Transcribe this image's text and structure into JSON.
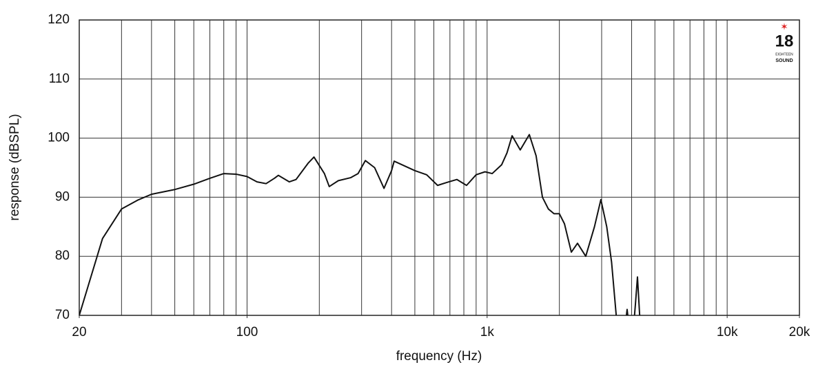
{
  "chart_data": {
    "type": "line",
    "x_label": "frequency (Hz)",
    "y_label": "response (dBSPL)",
    "log_x": true,
    "grid": true,
    "xlim": [
      20,
      20000
    ],
    "ylim": [
      70,
      120
    ],
    "xticks": [
      20,
      100,
      {
        "value": 1000,
        "label": "1k"
      },
      {
        "value": 10000,
        "label": "10k"
      },
      {
        "value": 20000,
        "label": "20k"
      }
    ],
    "xgrid": [
      30,
      40,
      50,
      60,
      70,
      80,
      90,
      100,
      200,
      300,
      400,
      500,
      600,
      700,
      800,
      900,
      1000,
      2000,
      3000,
      4000,
      5000,
      6000,
      7000,
      8000,
      9000,
      10000
    ],
    "yticks": [
      70,
      80,
      90,
      100,
      110,
      120
    ],
    "logo": {
      "number": "18",
      "line1": "EIGHTEEN",
      "line2": "SOUND"
    },
    "series": [
      {
        "color": "#111111",
        "x": [
          20,
          25,
          30,
          35,
          40,
          50,
          60,
          70,
          80,
          90,
          100,
          110,
          120,
          130,
          135,
          150,
          160,
          180,
          190,
          210,
          220,
          240,
          270,
          290,
          311,
          340,
          372,
          400,
          410,
          500,
          560,
          622,
          680,
          748,
          821,
          900,
          980,
          1050,
          1150,
          1210,
          1271,
          1374,
          1499,
          1600,
          1700,
          1800,
          1900,
          2000,
          2100,
          2243,
          2380,
          2576,
          2800,
          2978,
          3150,
          3300,
          3450,
          3600,
          3780,
          3830,
          3880,
          4000,
          4150,
          4230,
          4320,
          4450
        ],
        "values": [
          70,
          83,
          88,
          89.5,
          90.5,
          91.3,
          92.2,
          93.2,
          94,
          93.9,
          93.5,
          92.6,
          92.3,
          93.2,
          93.7,
          92.6,
          93,
          95.8,
          96.8,
          94,
          91.8,
          92.8,
          93.3,
          94,
          96.2,
          95,
          91.5,
          94.5,
          96.1,
          94.5,
          93.8,
          92,
          92.5,
          93,
          92,
          93.8,
          94.3,
          94,
          95.5,
          97.5,
          100.4,
          98,
          100.6,
          97,
          90,
          88,
          87.2,
          87.2,
          85.5,
          80.7,
          82.2,
          80,
          85,
          89.6,
          85,
          79,
          70,
          64,
          69,
          71,
          69,
          64,
          72,
          76.5,
          70,
          62
        ]
      }
    ]
  }
}
